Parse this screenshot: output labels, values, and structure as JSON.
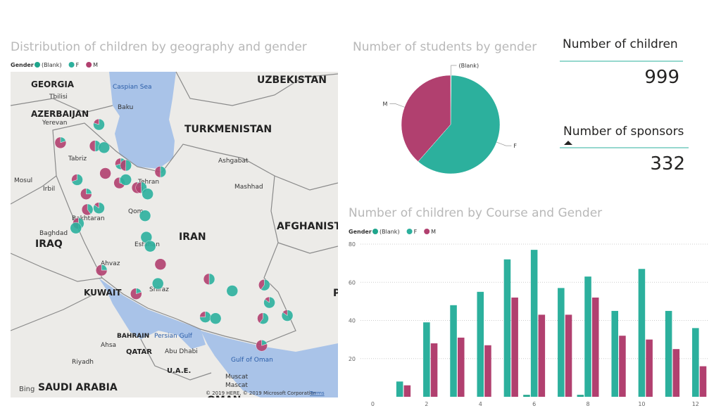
{
  "chart_data": [
    {
      "type": "map",
      "title": "Distribution of children by geography and gender",
      "legend_title": "Gender",
      "series": [
        {
          "name": "(Blank)",
          "color": "#1fa58c"
        },
        {
          "name": "F",
          "color": "#2cb09d"
        },
        {
          "name": "M",
          "color": "#b1406f"
        }
      ],
      "labels": [
        "GEORGIA",
        "Tbilisi",
        "AZERBAIJAN",
        "Baku",
        "Yerevan",
        "Caspian Sea",
        "UZBEKISTAN",
        "TURKMENISTAN",
        "Ashgabat",
        "Mashhad",
        "Tabriz",
        "Mosul",
        "Irbil",
        "Tehran",
        "Qom",
        "Bakhtaran",
        "Baghdad",
        "IRAQ",
        "Esfahan",
        "IRAN",
        "AFGHANISTAN",
        "Ahvaz",
        "KUWAIT",
        "Shiraz",
        "BAHRAIN",
        "Persian Gulf",
        "Ahsa",
        "QATAR",
        "Abu Dhabi",
        "Riyadh",
        "U.A.E.",
        "Gulf of Oman",
        "SAUDI ARABIA",
        "Muscat",
        "Mascat",
        "OMAN",
        "PAKISTAN"
      ],
      "logo": "Bing",
      "attribution": "© 2019 HERE, © 2019 Microsoft Corporation",
      "terms": "Terms",
      "markers": [
        {
          "lon": 48.0,
          "lat": 39.4,
          "values": [
            0,
            80,
            20
          ]
        },
        {
          "lon": 45.0,
          "lat": 38.3,
          "values": [
            0,
            20,
            80
          ]
        },
        {
          "lon": 47.7,
          "lat": 38.1,
          "values": [
            0,
            50,
            50
          ]
        },
        {
          "lon": 48.4,
          "lat": 38.0,
          "values": [
            0,
            100,
            0
          ]
        },
        {
          "lon": 49.7,
          "lat": 37.0,
          "values": [
            0,
            70,
            30
          ]
        },
        {
          "lon": 50.1,
          "lat": 36.9,
          "values": [
            0,
            50,
            50
          ]
        },
        {
          "lon": 52.8,
          "lat": 36.5,
          "values": [
            0,
            50,
            50
          ]
        },
        {
          "lon": 48.5,
          "lat": 36.4,
          "values": [
            0,
            0,
            100
          ]
        },
        {
          "lon": 46.3,
          "lat": 36.0,
          "values": [
            0,
            70,
            30
          ]
        },
        {
          "lon": 49.6,
          "lat": 35.8,
          "values": [
            0,
            30,
            70
          ]
        },
        {
          "lon": 50.1,
          "lat": 36.0,
          "values": [
            0,
            100,
            0
          ]
        },
        {
          "lon": 51.0,
          "lat": 35.5,
          "values": [
            0,
            20,
            80
          ]
        },
        {
          "lon": 51.3,
          "lat": 35.5,
          "values": [
            0,
            50,
            50
          ]
        },
        {
          "lon": 51.8,
          "lat": 35.1,
          "values": [
            0,
            100,
            0
          ]
        },
        {
          "lon": 47.0,
          "lat": 35.1,
          "values": [
            0,
            25,
            75
          ]
        },
        {
          "lon": 47.1,
          "lat": 34.1,
          "values": [
            0,
            40,
            60
          ]
        },
        {
          "lon": 48.0,
          "lat": 34.2,
          "values": [
            0,
            85,
            15
          ]
        },
        {
          "lon": 51.6,
          "lat": 33.7,
          "values": [
            0,
            100,
            0
          ]
        },
        {
          "lon": 46.4,
          "lat": 33.2,
          "values": [
            0,
            50,
            50
          ]
        },
        {
          "lon": 46.2,
          "lat": 32.9,
          "values": [
            0,
            100,
            0
          ]
        },
        {
          "lon": 51.7,
          "lat": 32.3,
          "values": [
            0,
            100,
            0
          ]
        },
        {
          "lon": 52.0,
          "lat": 31.7,
          "values": [
            0,
            100,
            0
          ]
        },
        {
          "lon": 52.8,
          "lat": 30.5,
          "values": [
            0,
            0,
            100
          ]
        },
        {
          "lon": 48.2,
          "lat": 30.1,
          "values": [
            0,
            25,
            75
          ]
        },
        {
          "lon": 52.6,
          "lat": 29.2,
          "values": [
            0,
            100,
            0
          ]
        },
        {
          "lon": 50.9,
          "lat": 28.5,
          "values": [
            0,
            20,
            80
          ]
        },
        {
          "lon": 56.6,
          "lat": 29.5,
          "values": [
            0,
            50,
            50
          ]
        },
        {
          "lon": 58.4,
          "lat": 28.7,
          "values": [
            0,
            100,
            0
          ]
        },
        {
          "lon": 60.9,
          "lat": 29.1,
          "values": [
            0,
            60,
            40
          ]
        },
        {
          "lon": 61.3,
          "lat": 27.9,
          "values": [
            0,
            85,
            15
          ]
        },
        {
          "lon": 62.7,
          "lat": 27.0,
          "values": [
            0,
            85,
            15
          ]
        },
        {
          "lon": 56.3,
          "lat": 26.9,
          "values": [
            0,
            75,
            25
          ]
        },
        {
          "lon": 57.1,
          "lat": 26.8,
          "values": [
            0,
            100,
            0
          ]
        },
        {
          "lon": 60.8,
          "lat": 26.8,
          "values": [
            0,
            60,
            40
          ]
        },
        {
          "lon": 60.7,
          "lat": 24.9,
          "values": [
            0,
            20,
            80
          ]
        }
      ]
    },
    {
      "type": "pie",
      "title": "Number of students by gender",
      "categories": [
        "(Blank)",
        "F",
        "M"
      ],
      "values": [
        2,
        612,
        385
      ],
      "colors": [
        "#1fa58c",
        "#2cb09d",
        "#b1406f"
      ]
    },
    {
      "type": "bar",
      "title": "Number of children by Course and Gender",
      "legend_title": "Gender",
      "x": [
        1,
        2,
        3,
        4,
        5,
        6,
        7,
        8,
        9,
        10,
        11,
        12
      ],
      "series": [
        {
          "name": "(Blank)",
          "color": "#1fa58c",
          "values": [
            null,
            null,
            null,
            null,
            null,
            1,
            null,
            1,
            null,
            null,
            null,
            null
          ]
        },
        {
          "name": "F",
          "color": "#2cb09d",
          "values": [
            8,
            39,
            48,
            55,
            72,
            77,
            57,
            63,
            45,
            67,
            45,
            36
          ]
        },
        {
          "name": "M",
          "color": "#b1406f",
          "values": [
            6,
            28,
            31,
            27,
            52,
            43,
            43,
            52,
            32,
            30,
            25,
            16
          ]
        }
      ],
      "xlim": [
        -0.85,
        12.45
      ],
      "xticks": [
        0,
        2,
        4,
        6,
        8,
        10,
        12
      ],
      "ylim": [
        0,
        80
      ],
      "yticks": [
        20,
        40,
        60,
        80
      ],
      "grid": true
    }
  ],
  "cards": [
    {
      "label": "Number of children",
      "value": 999
    },
    {
      "label": "Number of sponsors",
      "value": 332
    }
  ]
}
